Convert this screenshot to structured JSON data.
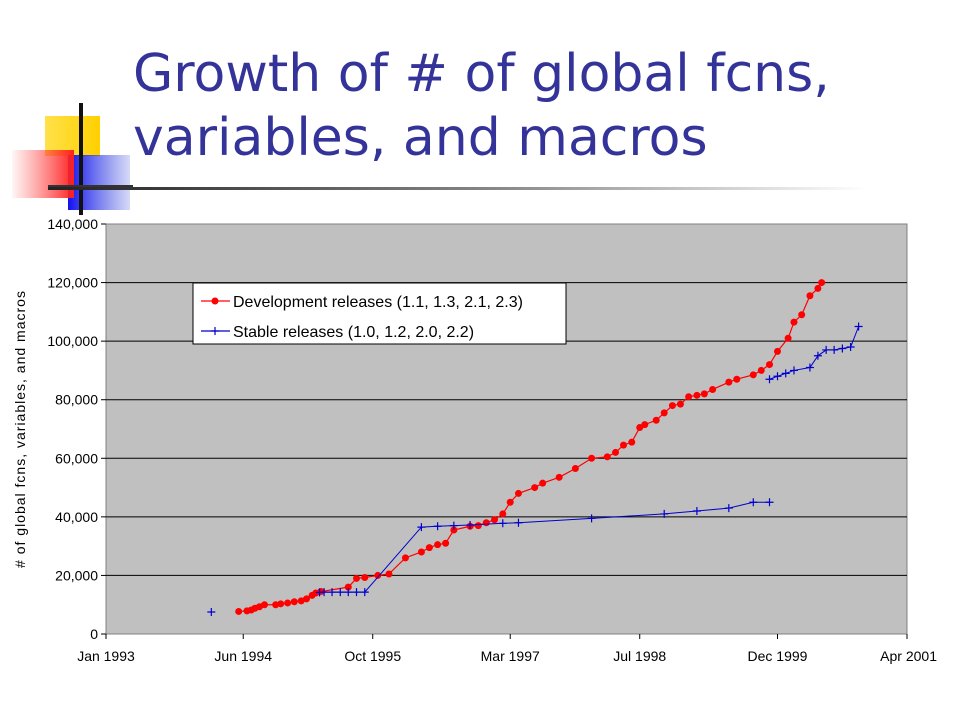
{
  "slide": {
    "title_line1": "Growth of # of global fcns,",
    "title_line2": "variables, and macros"
  },
  "colors": {
    "title": "#33339a",
    "plot_background": "#c0c0c0",
    "development_series": "#ff0000",
    "stable_series": "#0000cc"
  },
  "chart_data": {
    "type": "line",
    "title": "",
    "xlabel": "",
    "ylabel": "# of global fcns, variables, and macros",
    "xlim": [
      "1993-01-01",
      "2001-04-01"
    ],
    "ylim": [
      0,
      140000
    ],
    "x_ticks": [
      "Jan 1993",
      "Jun 1994",
      "Oct 1995",
      "Mar 1997",
      "Jul 1998",
      "Dec 1999",
      "Apr 2001"
    ],
    "x_tick_dates": [
      "1993-01-01",
      "1994-06-01",
      "1995-10-01",
      "1997-03-01",
      "1998-07-01",
      "1999-12-01",
      "2001-04-01"
    ],
    "y_ticks": [
      "0",
      "20,000",
      "40,000",
      "60,000",
      "80,000",
      "100,000",
      "120,000",
      "140,000"
    ],
    "y_tick_values": [
      0,
      20000,
      40000,
      60000,
      80000,
      100000,
      120000,
      140000
    ],
    "grid": "horizontal",
    "legend_position": "top-left",
    "series": [
      {
        "name": "Development releases (1.1, 1.3, 2.1, 2.3)",
        "color": "#ff0000",
        "marker": "circle",
        "points": [
          [
            "1994-05-15",
            7700
          ],
          [
            "1994-06-15",
            7900
          ],
          [
            "1994-07-01",
            8200
          ],
          [
            "1994-07-15",
            8800
          ],
          [
            "1994-08-01",
            9300
          ],
          [
            "1994-08-20",
            10000
          ],
          [
            "1994-10-01",
            10000
          ],
          [
            "1994-10-20",
            10300
          ],
          [
            "1994-11-15",
            10600
          ],
          [
            "1994-12-10",
            11000
          ],
          [
            "1995-01-05",
            11300
          ],
          [
            "1995-01-25",
            12000
          ],
          [
            "1995-02-15",
            13200
          ],
          [
            "1995-03-01",
            14000
          ],
          [
            "1995-03-20",
            14500
          ],
          [
            "1995-07-01",
            16000
          ],
          [
            "1995-08-01",
            19000
          ],
          [
            "1995-09-01",
            19300
          ],
          [
            "1995-10-20",
            20000
          ],
          [
            "1995-12-01",
            20500
          ],
          [
            "1996-02-01",
            26000
          ],
          [
            "1996-04-01",
            28000
          ],
          [
            "1996-05-01",
            29500
          ],
          [
            "1996-06-01",
            30500
          ],
          [
            "1996-07-01",
            31000
          ],
          [
            "1996-08-01",
            35500
          ],
          [
            "1996-10-01",
            36800
          ],
          [
            "1996-11-01",
            37000
          ],
          [
            "1996-12-01",
            38000
          ],
          [
            "1997-01-01",
            39000
          ],
          [
            "1997-02-01",
            41000
          ],
          [
            "1997-03-01",
            45000
          ],
          [
            "1997-04-01",
            48000
          ],
          [
            "1997-06-01",
            50000
          ],
          [
            "1997-07-01",
            51500
          ],
          [
            "1997-09-01",
            53500
          ],
          [
            "1997-11-01",
            56500
          ],
          [
            "1998-01-01",
            60000
          ],
          [
            "1998-03-01",
            60500
          ],
          [
            "1998-04-01",
            62000
          ],
          [
            "1998-05-01",
            64500
          ],
          [
            "1998-06-01",
            65500
          ],
          [
            "1998-07-01",
            70500
          ],
          [
            "1998-07-20",
            71500
          ],
          [
            "1998-09-01",
            73000
          ],
          [
            "1998-10-01",
            75500
          ],
          [
            "1998-11-01",
            78000
          ],
          [
            "1998-12-01",
            78500
          ],
          [
            "1999-01-01",
            81000
          ],
          [
            "1999-02-01",
            81500
          ],
          [
            "1999-03-01",
            82000
          ],
          [
            "1999-04-01",
            83500
          ],
          [
            "1999-06-01",
            86000
          ],
          [
            "1999-07-01",
            87000
          ],
          [
            "1999-09-01",
            88500
          ],
          [
            "1999-10-01",
            90000
          ],
          [
            "1999-11-01",
            92000
          ],
          [
            "1999-12-01",
            96500
          ],
          [
            "2000-01-10",
            101000
          ],
          [
            "2000-02-01",
            106500
          ],
          [
            "2000-03-01",
            109000
          ],
          [
            "2000-04-01",
            115500
          ],
          [
            "2000-05-01",
            118000
          ],
          [
            "2000-05-15",
            120000
          ]
        ]
      },
      {
        "name": "Stable releases (1.0, 1.2, 2.0, 2.2)",
        "color": "#0000cc",
        "marker": "plus",
        "points": [
          [
            "1994-02-01",
            7500
          ],
          [
            "1995-03-15",
            14200
          ],
          [
            "1995-04-01",
            14300
          ],
          [
            "1995-05-01",
            14300
          ],
          [
            "1995-06-01",
            14300
          ],
          [
            "1995-07-01",
            14300
          ],
          [
            "1995-08-01",
            14300
          ],
          [
            "1995-09-01",
            14300
          ],
          [
            "1996-04-01",
            36500
          ],
          [
            "1996-06-01",
            36800
          ],
          [
            "1996-08-01",
            37000
          ],
          [
            "1996-10-01",
            37200
          ],
          [
            "1997-02-01",
            37800
          ],
          [
            "1997-04-01",
            38000
          ],
          [
            "1998-01-01",
            39500
          ],
          [
            "1998-10-01",
            41000
          ],
          [
            "1999-02-01",
            42000
          ],
          [
            "1999-06-01",
            43000
          ],
          [
            "1999-09-01",
            45000
          ],
          [
            "1999-11-01",
            45000
          ],
          [
            "1999-11-01",
            87000
          ],
          [
            "1999-12-01",
            88000
          ],
          [
            "2000-01-01",
            89000
          ],
          [
            "2000-02-01",
            90000
          ],
          [
            "2000-04-01",
            91000
          ],
          [
            "2000-05-01",
            95000
          ],
          [
            "2000-06-01",
            97000
          ],
          [
            "2000-07-01",
            97000
          ],
          [
            "2000-08-01",
            97500
          ],
          [
            "2000-09-01",
            98000
          ],
          [
            "2000-10-01",
            105000
          ]
        ]
      }
    ]
  }
}
